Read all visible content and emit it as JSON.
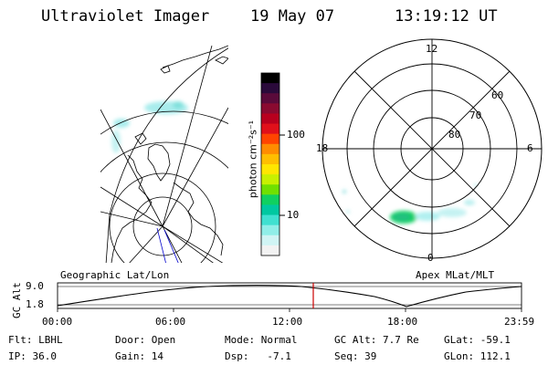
{
  "header": {
    "title": "Ultraviolet Imager",
    "date": "19 May 07",
    "time": "13:19:12 UT"
  },
  "colorbar": {
    "label": "photon cm⁻²s⁻¹",
    "ticks": [
      "100",
      "10"
    ],
    "colors": [
      "#000000",
      "#2a0a3a",
      "#5a0a3a",
      "#8a0a30",
      "#b8001e",
      "#e0101a",
      "#ff4400",
      "#ff8c00",
      "#ffbe00",
      "#ffe600",
      "#c8f000",
      "#70e000",
      "#10d060",
      "#00c8a0",
      "#40e0d0",
      "#90eee8",
      "#d0f4f4",
      "#f2f2f2"
    ]
  },
  "polar_plot": {
    "mlt_labels": [
      "12",
      "18",
      "6",
      "0"
    ],
    "lat_labels": [
      "60",
      "70",
      "80"
    ]
  },
  "orbit_plot": {
    "left_title": "Geographic Lat/Lon",
    "right_title": "Apex MLat/MLT",
    "y_label": "GC Alt",
    "y_ticks": [
      "9.0",
      "1.8"
    ],
    "x_ticks": [
      "00:00",
      "06:00",
      "12:00",
      "18:00",
      "23:59"
    ],
    "marker_color": "#cc0000"
  },
  "info": {
    "row1": [
      "Flt: LBHL",
      "Door: Open",
      "Mode: Normal",
      "GC Alt: 7.7 Re",
      "GLat: -59.1"
    ],
    "row2": [
      "IP: 36.0",
      "Gain: 14",
      "Dsp:   -7.1",
      "Seq: 39",
      "GLon: 112.1"
    ]
  }
}
